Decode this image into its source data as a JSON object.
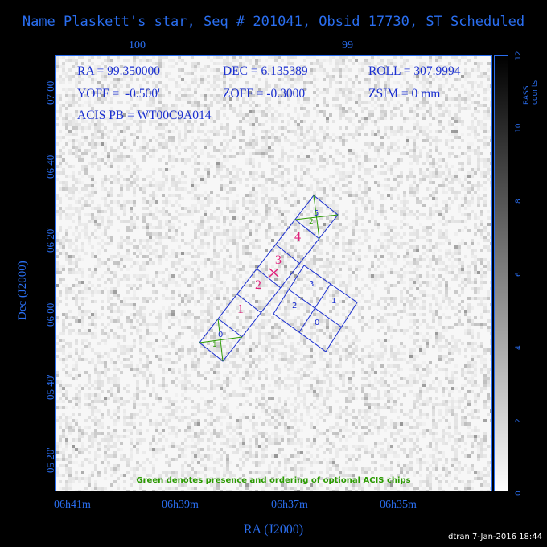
{
  "title": "Name Plaskett's star, Seq # 201041, Obsid 17730, ST Scheduled",
  "top_axis": {
    "ticks": [
      "100",
      "99"
    ]
  },
  "bottom_axis": {
    "ticks": [
      "06h41m",
      "06h39m",
      "06h37m",
      "06h35m"
    ],
    "label": "RA (J2000)"
  },
  "left_axis": {
    "ticks": [
      "07 00'",
      "06 40'",
      "06 20'",
      "06 00'",
      "05 40'",
      "05 20'"
    ],
    "label": "Dec (J2000)"
  },
  "info": {
    "ra": "RA = 99.350000",
    "dec": "DEC = 6.135389",
    "roll": "ROLL = 307.9994",
    "yoff": "YOFF =  -0.500'",
    "zoff": "ZOFF = -0.3000'",
    "zsim": "ZSIM = 0 mm",
    "acis_pb": "ACIS PB = WT00C9A014"
  },
  "colorbar": {
    "unit": "RASS counts",
    "ticks": [
      "0",
      "2",
      "4",
      "6",
      "8",
      "10",
      "12"
    ]
  },
  "chips": {
    "s_array": [
      "1",
      "2",
      "3",
      "4"
    ],
    "i_array": [
      "3",
      "1",
      "2",
      "0"
    ],
    "optional": [
      "0",
      "1",
      "5",
      "2"
    ]
  },
  "note": "Green denotes presence and ordering of optional ACIS chips",
  "footer": "dtran  7-Jan-2016 18:44",
  "colors": {
    "axis": "#2a6ef0",
    "chips": "#1a2fd0",
    "ccd_numbers": "#e0207a",
    "optional": "#2a9a00",
    "background": "#000000"
  },
  "chart_data": {
    "type": "image",
    "field_center": {
      "ra_deg": 99.35,
      "dec_deg": 6.135389
    },
    "roll_deg": 307.9994,
    "colorbar_range": [
      0,
      12
    ]
  }
}
